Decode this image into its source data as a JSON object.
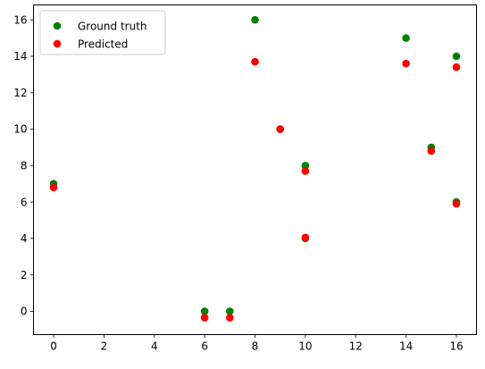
{
  "chart_data": {
    "type": "scatter",
    "title": "",
    "xlabel": "",
    "ylabel": "",
    "xlim": [
      -0.8,
      16.8
    ],
    "ylim": [
      -1.28,
      16.82
    ],
    "xticks": [
      0,
      2,
      4,
      6,
      8,
      10,
      12,
      14,
      16
    ],
    "yticks": [
      0,
      2,
      4,
      6,
      8,
      10,
      12,
      14,
      16
    ],
    "grid": false,
    "legend_position": "top-left",
    "series": [
      {
        "name": "Ground truth",
        "color": "#008000",
        "x": [
          0,
          6,
          7,
          8,
          9,
          10,
          10,
          14,
          15,
          16,
          16
        ],
        "y": [
          7,
          0,
          0,
          16,
          10,
          8,
          4,
          15,
          9,
          14,
          6
        ]
      },
      {
        "name": "Predicted",
        "color": "#ff0000",
        "x": [
          0,
          6,
          7,
          8,
          9,
          10,
          10,
          14,
          15,
          16,
          16
        ],
        "y": [
          6.8,
          -0.35,
          -0.35,
          13.7,
          10,
          7.7,
          4.05,
          13.6,
          8.8,
          13.4,
          5.9
        ]
      }
    ]
  }
}
